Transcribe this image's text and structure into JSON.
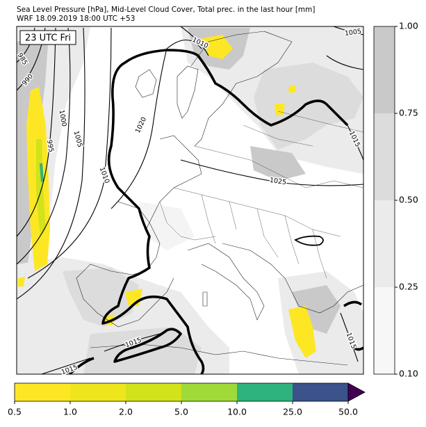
{
  "header": {
    "line1": "Sea Level Pressure [hPa], Mid-Level Cloud Cover, Total prec. in the last hour [mm]",
    "line2": "WRF 18.09.2019 18:00 UTC +53"
  },
  "map": {
    "time_label": "23 UTC Fri",
    "isobar_labels": [
      1005,
      1010,
      985,
      990,
      1000,
      1020,
      1005,
      995,
      1010,
      1015,
      1025,
      1015,
      1015,
      1015
    ]
  },
  "cloud_colorbar": {
    "ticks": [
      {
        "value": 0.1,
        "label": "0.10"
      },
      {
        "value": 0.25,
        "label": "0.25"
      },
      {
        "value": 0.5,
        "label": "0.50"
      },
      {
        "value": 0.75,
        "label": "0.75"
      },
      {
        "value": 1,
        "label": "1.00"
      }
    ],
    "colors": [
      "#f7f7f7",
      "#ebebeb",
      "#dcdcdc",
      "#c9c9c9"
    ]
  },
  "precip_colorbar": {
    "ticks": [
      {
        "value": 0.5,
        "label": "0.5"
      },
      {
        "value": 1,
        "label": "1.0"
      },
      {
        "value": 2,
        "label": "2.0"
      },
      {
        "value": 5,
        "label": "5.0"
      },
      {
        "value": 10,
        "label": "10.0"
      },
      {
        "value": 25,
        "label": "25.0"
      },
      {
        "value": 50,
        "label": "50.0"
      }
    ],
    "colors": [
      "#fde725",
      "#efe51c",
      "#d2e21b",
      "#a0da39",
      "#2eb37c",
      "#3b528b"
    ],
    "extend_color": "#440154"
  }
}
